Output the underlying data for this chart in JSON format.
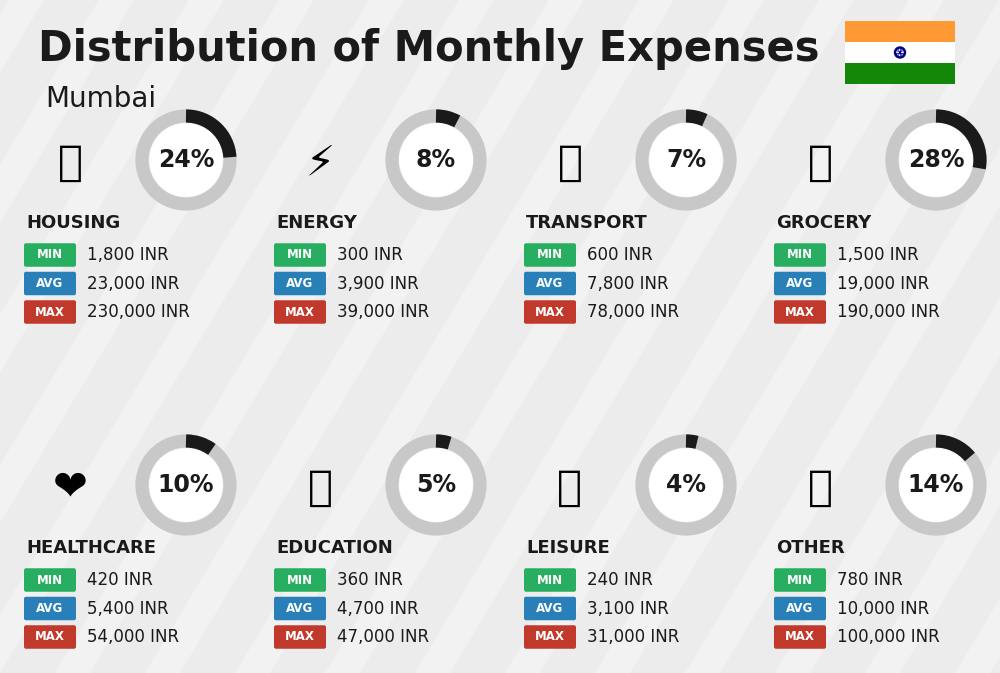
{
  "title": "Distribution of Monthly Expenses",
  "subtitle": "Mumbai",
  "background_color": "#f2f2f2",
  "categories": [
    {
      "name": "HOUSING",
      "pct": 24,
      "icon": "🏙",
      "min_val": "1,800 INR",
      "avg_val": "23,000 INR",
      "max_val": "230,000 INR",
      "row": 0,
      "col": 0
    },
    {
      "name": "ENERGY",
      "pct": 8,
      "icon": "⚡",
      "min_val": "300 INR",
      "avg_val": "3,900 INR",
      "max_val": "39,000 INR",
      "row": 0,
      "col": 1
    },
    {
      "name": "TRANSPORT",
      "pct": 7,
      "icon": "🚌",
      "min_val": "600 INR",
      "avg_val": "7,800 INR",
      "max_val": "78,000 INR",
      "row": 0,
      "col": 2
    },
    {
      "name": "GROCERY",
      "pct": 28,
      "icon": "🛒",
      "min_val": "1,500 INR",
      "avg_val": "19,000 INR",
      "max_val": "190,000 INR",
      "row": 0,
      "col": 3
    },
    {
      "name": "HEALTHCARE",
      "pct": 10,
      "icon": "❤️",
      "min_val": "420 INR",
      "avg_val": "5,400 INR",
      "max_val": "54,000 INR",
      "row": 1,
      "col": 0
    },
    {
      "name": "EDUCATION",
      "pct": 5,
      "icon": "🎓",
      "min_val": "360 INR",
      "avg_val": "4,700 INR",
      "max_val": "47,000 INR",
      "row": 1,
      "col": 1
    },
    {
      "name": "LEISURE",
      "pct": 4,
      "icon": "🛍️",
      "min_val": "240 INR",
      "avg_val": "3,100 INR",
      "max_val": "31,000 INR",
      "row": 1,
      "col": 2
    },
    {
      "name": "OTHER",
      "pct": 14,
      "icon": "💰",
      "min_val": "780 INR",
      "avg_val": "10,000 INR",
      "max_val": "100,000 INR",
      "row": 1,
      "col": 3
    }
  ],
  "min_color": "#27ae60",
  "avg_color": "#2980b9",
  "max_color": "#c0392b",
  "donut_bg": "#c8c8c8",
  "donut_fg": "#1a1a1a",
  "label_color": "#ffffff",
  "text_color": "#1a1a1a",
  "india_flag_colors": [
    "#FF9933",
    "#ffffff",
    "#138808"
  ],
  "title_fontsize": 30,
  "subtitle_fontsize": 20,
  "category_fontsize": 13,
  "value_fontsize": 12,
  "pct_fontsize": 17
}
